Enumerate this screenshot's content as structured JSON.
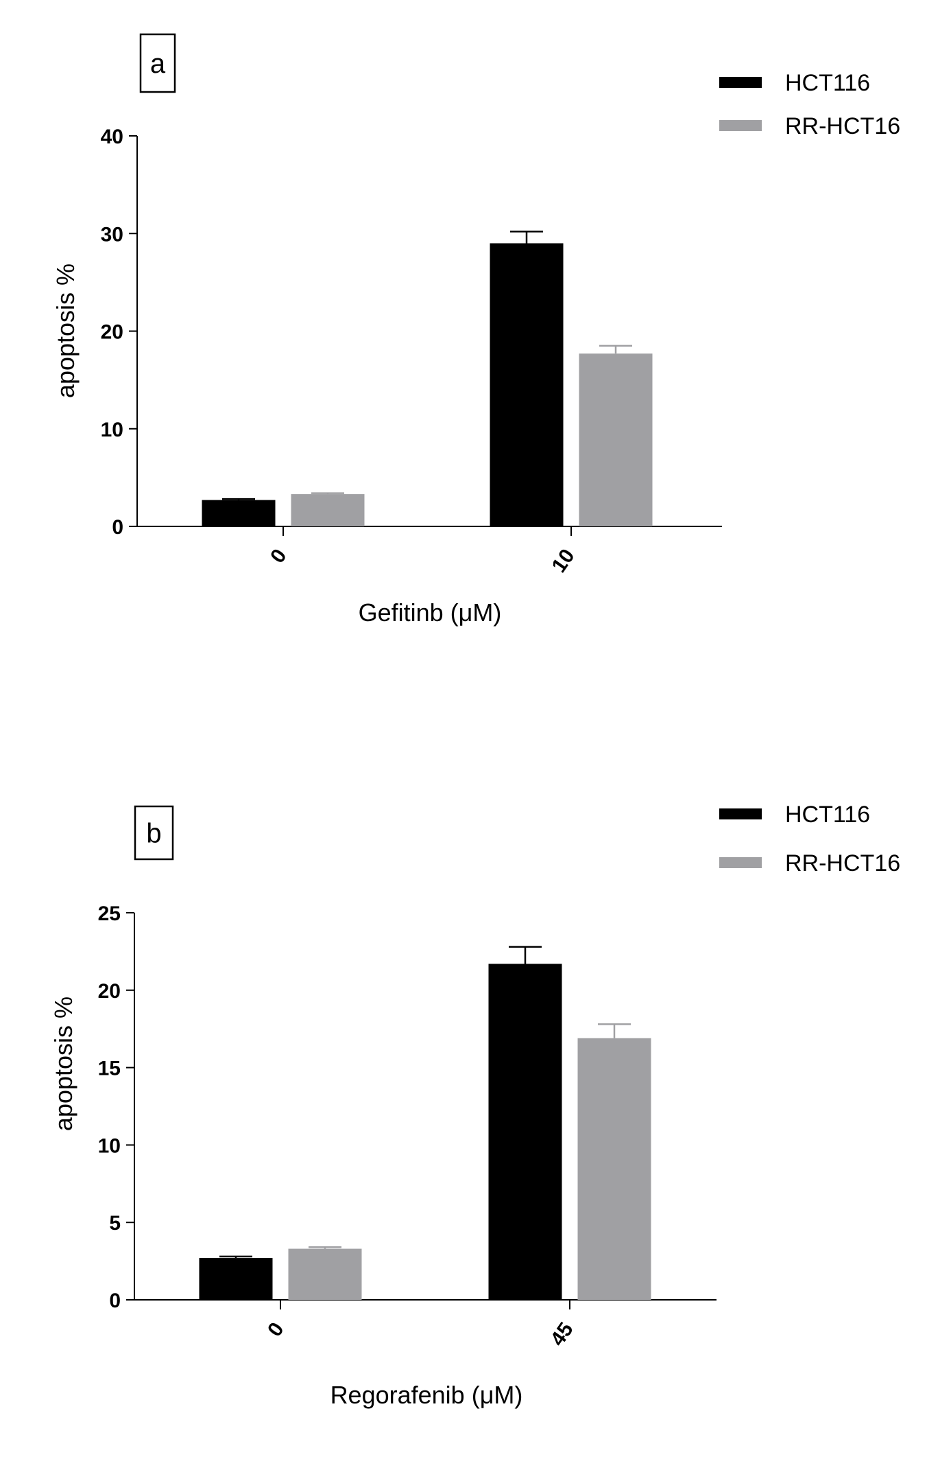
{
  "chart_data": [
    {
      "panel_label": "a",
      "type": "bar",
      "categories": [
        "0",
        "10"
      ],
      "series": [
        {
          "name": "HCT116",
          "color": "#000000",
          "values": [
            2.7,
            29.0
          ],
          "errors": [
            0.1,
            1.2
          ]
        },
        {
          "name": "RR-HCT16",
          "color": "#a0a0a3",
          "values": [
            3.3,
            17.7
          ],
          "errors": [
            0.1,
            0.8
          ]
        }
      ],
      "xlabel": "Gefitinb (μM)",
      "ylabel": "apoptosis %",
      "ylim": [
        0,
        40
      ],
      "yticks": [
        "0",
        "10",
        "20",
        "30",
        "40"
      ],
      "legend_position": "top-right",
      "grid": false
    },
    {
      "panel_label": "b",
      "type": "bar",
      "categories": [
        "0",
        "45"
      ],
      "series": [
        {
          "name": "HCT116",
          "color": "#000000",
          "values": [
            2.7,
            21.7
          ],
          "errors": [
            0.1,
            1.1
          ]
        },
        {
          "name": "RR-HCT16",
          "color": "#a0a0a3",
          "values": [
            3.3,
            16.9
          ],
          "errors": [
            0.1,
            0.9
          ]
        }
      ],
      "xlabel": "Regorafenib (μM)",
      "ylabel": "apoptosis %",
      "ylim": [
        0,
        25
      ],
      "yticks": [
        "0",
        "5",
        "10",
        "15",
        "20",
        "25"
      ],
      "legend_position": "top-right",
      "grid": false
    }
  ]
}
